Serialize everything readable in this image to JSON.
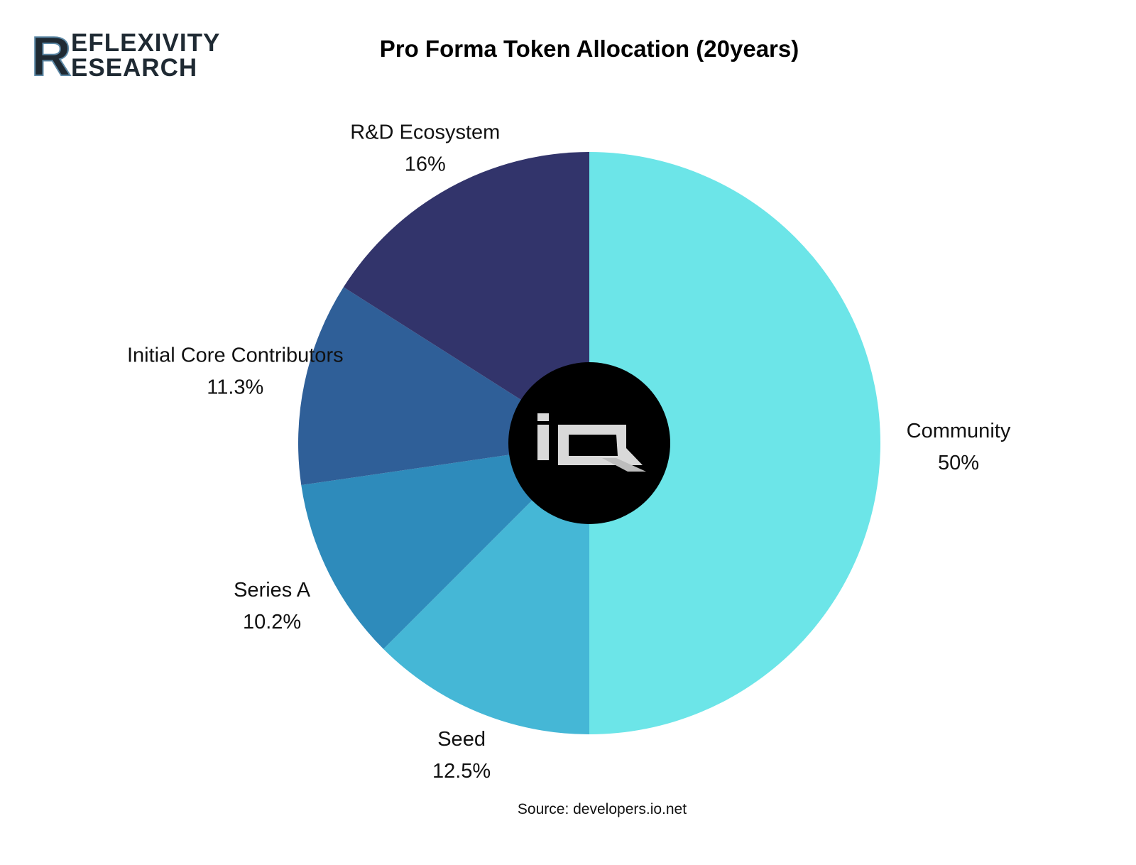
{
  "brand": {
    "line1": "EFLEXIVITY",
    "line2": "ESEARCH",
    "initial": "R"
  },
  "center_logo": {
    "text": "io",
    "icon": "io-net-logo-icon"
  },
  "source": "Source: developers.io.net",
  "colors": {
    "community": "#6ce5e8",
    "seed": "#45b7d6",
    "series_a": "#2e8bbb",
    "initial_core": "#2f5f98",
    "rnd": "#32346b",
    "center": "#000000"
  },
  "chart_data": {
    "type": "pie",
    "title": "Pro Forma Token Allocation (20years)",
    "start": "top",
    "direction": "clockwise",
    "slices": [
      {
        "label": "Community",
        "value": 50,
        "value_label": "50%",
        "color": "#6ce5e8"
      },
      {
        "label": "Seed",
        "value": 12.5,
        "value_label": "12.5%",
        "color": "#45b7d6"
      },
      {
        "label": "Series A",
        "value": 10.2,
        "value_label": "10.2%",
        "color": "#2e8bbb"
      },
      {
        "label": "Initial Core Contributors",
        "value": 11.3,
        "value_label": "11.3%",
        "color": "#2f5f98"
      },
      {
        "label": "R&D Ecosystem",
        "value": 16,
        "value_label": "16%",
        "color": "#32346b"
      }
    ]
  }
}
